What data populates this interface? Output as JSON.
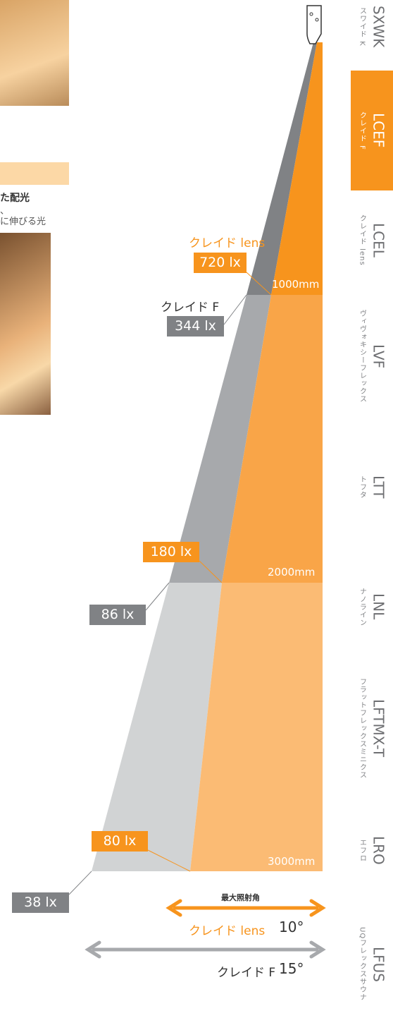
{
  "left": {
    "heading": "た配光",
    "line1": "、",
    "line2": "に伸びる光"
  },
  "diagram": {
    "lens_name": "クレイド lens",
    "f_name": "クレイド F",
    "distances": [
      "1000mm",
      "2000mm",
      "3000mm"
    ],
    "lens_lux": [
      "720 lx",
      "180 lx",
      "80 lx"
    ],
    "f_lux": [
      "344 lx",
      "86 lx",
      "38 lx"
    ],
    "angle_title": "最大照射角",
    "lens_angle": "10°",
    "f_angle": "15°"
  },
  "nav": [
    {
      "code": "SXWK",
      "name": "スワイド K"
    },
    {
      "code": "LCEF",
      "name": "クレイド F"
    },
    {
      "code": "LCEL",
      "name": "クレイド lens"
    },
    {
      "code": "LVF",
      "name": "ヴィヴォキシーフレックス"
    },
    {
      "code": "LTT",
      "name": "トフタ"
    },
    {
      "code": "LNL",
      "name": "ナノライン"
    },
    {
      "code": "LFTMX-T",
      "name": "フラットフレックスミニクス"
    },
    {
      "code": "LRO",
      "name": "エフロ"
    },
    {
      "code": "LFUS",
      "name": "UQフレックスサウナ"
    }
  ]
}
